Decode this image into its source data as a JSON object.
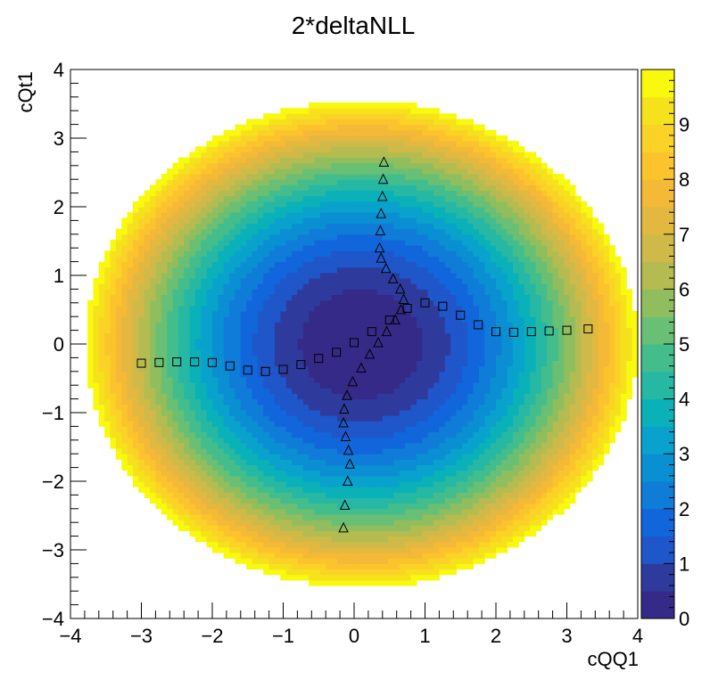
{
  "chart_data": {
    "type": "heatmap",
    "title": "2*deltaNLL",
    "xlabel": "cQQ1",
    "ylabel": "cQt1",
    "xlim": [
      -4,
      4
    ],
    "ylim": [
      -4,
      4
    ],
    "x_ticks": [
      "−4",
      "−3",
      "−2",
      "−1",
      "0",
      "1",
      "2",
      "3",
      "4"
    ],
    "y_ticks": [
      "−4",
      "−3",
      "−2",
      "−1",
      "0",
      "1",
      "2",
      "3",
      "4"
    ],
    "colorbar": {
      "zlim": [
        0,
        10
      ],
      "ticks": [
        "0",
        "1",
        "2",
        "3",
        "4",
        "5",
        "6",
        "7",
        "8",
        "9"
      ],
      "colors": [
        "#352a87",
        "#2e3b9d",
        "#1f56c9",
        "#1166db",
        "#0f7cd8",
        "#0a8fd2",
        "#08a2cc",
        "#0ab1b8",
        "#27b8a4",
        "#44bd8c",
        "#69bf73",
        "#90be5e",
        "#b4bc51",
        "#cfba49",
        "#e2b840",
        "#f4b936",
        "#fcc42c",
        "#fad326",
        "#f6e21c",
        "#f9f90e"
      ]
    },
    "heatmap": {
      "center": [
        0.1,
        0.0
      ],
      "radius_x": 3.89,
      "radius_y": 3.55,
      "max_value": 10
    },
    "series": [
      {
        "marker": "open-square",
        "x": [
          -3.0,
          -2.75,
          -2.5,
          -2.25,
          -2.0,
          -1.75,
          -1.5,
          -1.25,
          -1.0,
          -0.75,
          -0.5,
          -0.25,
          0.0,
          0.25,
          0.5,
          0.75,
          1.0,
          1.25,
          1.5,
          1.75,
          2.0,
          2.25,
          2.5,
          2.75,
          3.0,
          3.3
        ],
        "y": [
          -0.28,
          -0.27,
          -0.26,
          -0.26,
          -0.27,
          -0.32,
          -0.38,
          -0.4,
          -0.37,
          -0.3,
          -0.21,
          -0.12,
          0.02,
          0.18,
          0.35,
          0.52,
          0.6,
          0.55,
          0.42,
          0.28,
          0.18,
          0.17,
          0.18,
          0.19,
          0.2,
          0.22
        ]
      },
      {
        "marker": "open-triangle",
        "x": [
          0.42,
          0.41,
          0.4,
          0.38,
          0.37,
          0.36,
          0.38,
          0.45,
          0.55,
          0.65,
          0.7,
          0.66,
          0.58,
          0.46,
          0.34,
          0.22,
          0.1,
          -0.02,
          -0.1,
          -0.14,
          -0.15,
          -0.12,
          -0.08,
          -0.06,
          -0.09,
          -0.13,
          -0.15
        ],
        "y": [
          2.65,
          2.4,
          2.15,
          1.9,
          1.65,
          1.4,
          1.25,
          1.1,
          0.95,
          0.8,
          0.65,
          0.5,
          0.35,
          0.18,
          0.02,
          -0.15,
          -0.35,
          -0.55,
          -0.75,
          -0.95,
          -1.15,
          -1.35,
          -1.55,
          -1.75,
          -2.0,
          -2.35,
          -2.68
        ]
      }
    ]
  }
}
